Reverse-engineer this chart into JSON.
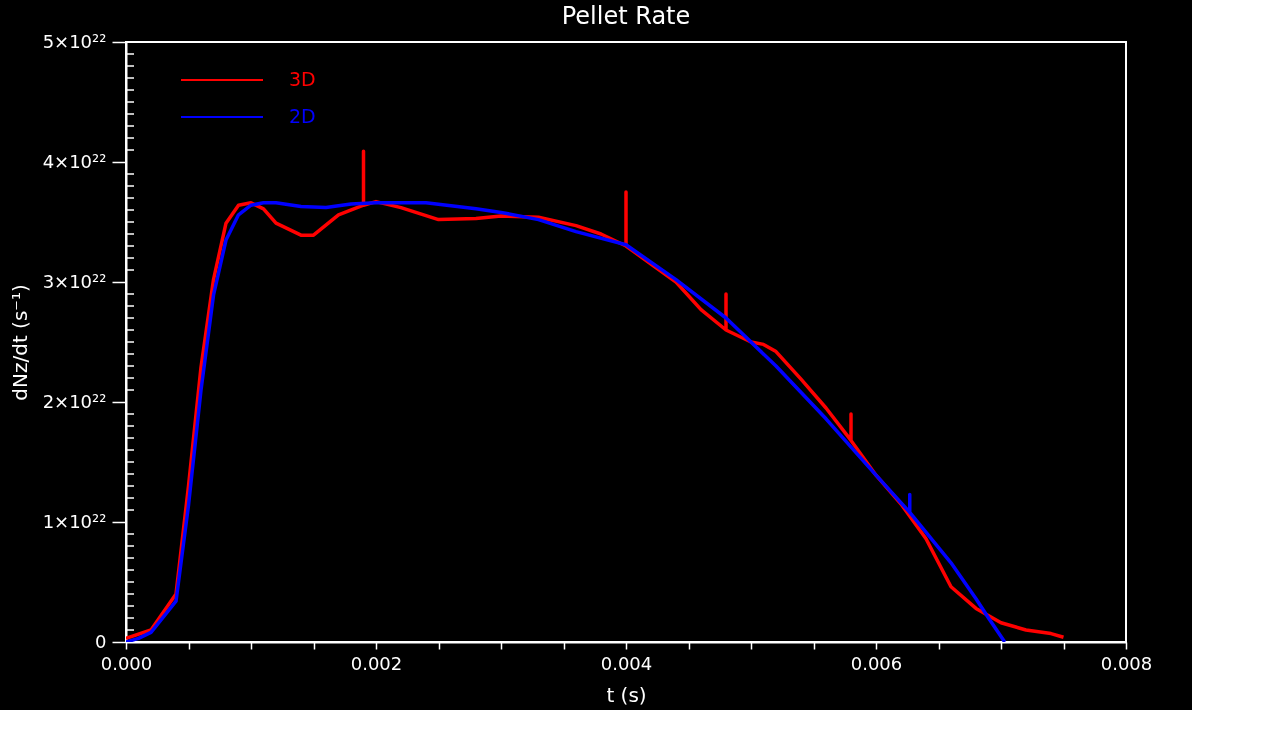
{
  "chart_data": {
    "type": "line",
    "title": "Pellet Rate",
    "xlabel": "t (s)",
    "ylabel": "dNz/dt (s⁻¹)",
    "xlim": [
      0,
      0.008
    ],
    "ylim": [
      0,
      5e+22
    ],
    "xticks": [
      {
        "value": 0,
        "label": "0.000"
      },
      {
        "value": 0.0005,
        "label": null
      },
      {
        "value": 0.001,
        "label": null
      },
      {
        "value": 0.0015,
        "label": null
      },
      {
        "value": 0.002,
        "label": "0.002"
      },
      {
        "value": 0.0025,
        "label": null
      },
      {
        "value": 0.003,
        "label": null
      },
      {
        "value": 0.0035,
        "label": null
      },
      {
        "value": 0.004,
        "label": "0.004"
      },
      {
        "value": 0.0045,
        "label": null
      },
      {
        "value": 0.005,
        "label": null
      },
      {
        "value": 0.0055,
        "label": null
      },
      {
        "value": 0.006,
        "label": "0.006"
      },
      {
        "value": 0.0065,
        "label": null
      },
      {
        "value": 0.007,
        "label": null
      },
      {
        "value": 0.0075,
        "label": null
      },
      {
        "value": 0.008,
        "label": "0.008"
      }
    ],
    "yticks": [
      0,
      {
        "value": 1e+21,
        "label": null
      },
      {
        "value": 2e+21,
        "label": null
      },
      {
        "value": 3e+21,
        "label": null
      },
      {
        "value": 4e+21,
        "label": null
      },
      {
        "value": 5e+21,
        "label": null
      },
      {
        "value": 6e+21,
        "label": null
      },
      {
        "value": 7e+21,
        "label": null
      },
      {
        "value": 8e+21,
        "label": null
      },
      {
        "value": 9e+21,
        "label": null
      },
      {
        "value": 1e+22,
        "label": "1×10²²"
      },
      {
        "value": 1.1e+22,
        "label": null
      },
      {
        "value": 1.2e+22,
        "label": null
      },
      {
        "value": 1.3e+22,
        "label": null
      },
      {
        "value": 1.4e+22,
        "label": null
      },
      {
        "value": 1.5e+22,
        "label": null
      },
      {
        "value": 1.6e+22,
        "label": null
      },
      {
        "value": 1.7e+22,
        "label": null
      },
      {
        "value": 1.8e+22,
        "label": null
      },
      {
        "value": 1.9e+22,
        "label": null
      },
      {
        "value": 2e+22,
        "label": "2×10²²"
      },
      {
        "value": 2.1e+22,
        "label": null
      },
      {
        "value": 2.2e+22,
        "label": null
      },
      {
        "value": 2.3e+22,
        "label": null
      },
      {
        "value": 2.4e+22,
        "label": null
      },
      {
        "value": 2.5e+22,
        "label": null
      },
      {
        "value": 2.6e+22,
        "label": null
      },
      {
        "value": 2.7e+22,
        "label": null
      },
      {
        "value": 2.8e+22,
        "label": null
      },
      {
        "value": 2.9e+22,
        "label": null
      },
      {
        "value": 3e+22,
        "label": "3×10²²"
      },
      {
        "value": 3.1e+22,
        "label": null
      },
      {
        "value": 3.2e+22,
        "label": null
      },
      {
        "value": 3.3e+22,
        "label": null
      },
      {
        "value": 3.4e+22,
        "label": null
      },
      {
        "value": 3.5e+22,
        "label": null
      },
      {
        "value": 3.6e+22,
        "label": null
      },
      {
        "value": 3.7e+22,
        "label": null
      },
      {
        "value": 3.8e+22,
        "label": null
      },
      {
        "value": 3.9e+22,
        "label": null
      },
      {
        "value": 4e+22,
        "label": "4×10²²"
      },
      {
        "value": 4.1e+22,
        "label": null
      },
      {
        "value": 4.2e+22,
        "label": null
      },
      {
        "value": 4.3e+22,
        "label": null
      },
      {
        "value": 4.4e+22,
        "label": null
      },
      {
        "value": 4.5e+22,
        "label": null
      },
      {
        "value": 4.6e+22,
        "label": null
      },
      {
        "value": 4.7e+22,
        "label": null
      },
      {
        "value": 4.8e+22,
        "label": null
      },
      {
        "value": 4.9e+22,
        "label": null
      },
      {
        "value": 5e+22,
        "label": "5×10²²"
      }
    ],
    "grid": false,
    "legend": "top left",
    "marker": "none",
    "line_style": "solid",
    "series": [
      {
        "name": "3D",
        "color": "#ff0000",
        "x": [
          0,
          0.0002,
          0.0004,
          0.0005,
          0.0006,
          0.0007,
          0.0008,
          0.0009,
          0.001,
          0.0011,
          0.0012,
          0.0014,
          0.0015,
          0.0017,
          0.0019,
          0.0019,
          0.0019,
          0.002,
          0.0022,
          0.0025,
          0.0028,
          0.003,
          0.0033,
          0.0036,
          0.0038,
          0.004,
          0.004,
          0.004,
          0.0042,
          0.0044,
          0.0046,
          0.0048,
          0.0048,
          0.0048,
          0.005,
          0.0051,
          0.0052,
          0.0054,
          0.0056,
          0.0058,
          0.0058,
          0.0058,
          0.006,
          0.0062,
          0.0064,
          0.0066,
          0.0068,
          0.007,
          0.0072,
          0.0074,
          0.0075
        ],
        "values": [
          3e+20,
          1e+21,
          4e+21,
          1.3e+22,
          2.29e+22,
          3.02e+22,
          3.49e+22,
          3.64e+22,
          3.66e+22,
          3.61e+22,
          3.49e+22,
          3.39e+22,
          3.39e+22,
          3.56e+22,
          3.64e+22,
          4.09e+22,
          3.64e+22,
          3.67e+22,
          3.62e+22,
          3.52e+22,
          3.53e+22,
          3.55e+22,
          3.54e+22,
          3.47e+22,
          3.4e+22,
          3.3e+22,
          3.75e+22,
          3.3e+22,
          3.15e+22,
          3e+22,
          2.77e+22,
          2.6e+22,
          2.9e+22,
          2.6e+22,
          2.5e+22,
          2.48e+22,
          2.42e+22,
          2.19e+22,
          1.95e+22,
          1.68e+22,
          1.9e+22,
          1.68e+22,
          1.39e+22,
          1.15e+22,
          8.6e+21,
          4.6e+21,
          2.8e+21,
          1.6e+21,
          1e+21,
          7e+20,
          4e+20
        ]
      },
      {
        "name": "2D",
        "color": "#0000ff",
        "x": [
          0,
          0.0001,
          0.0002,
          0.0004,
          0.0005,
          0.0006,
          0.0007,
          0.0008,
          0.0009,
          0.001,
          0.0011,
          0.0012,
          0.0014,
          0.0016,
          0.0018,
          0.002,
          0.0024,
          0.0028,
          0.003,
          0.0033,
          0.0036,
          0.004,
          0.0044,
          0.0048,
          0.0052,
          0.0056,
          0.006,
          0.00627,
          0.00627,
          0.00627,
          0.0066,
          0.0068,
          0.0069,
          0.00703
        ],
        "values": [
          0,
          3e+20,
          8e+20,
          3.4e+21,
          1.14e+22,
          2.1e+22,
          2.89e+22,
          3.35e+22,
          3.56e+22,
          3.64e+22,
          3.66e+22,
          3.66e+22,
          3.63e+22,
          3.62e+22,
          3.65e+22,
          3.66e+22,
          3.66e+22,
          3.61e+22,
          3.58e+22,
          3.52e+22,
          3.42e+22,
          3.31e+22,
          3.02e+22,
          2.7e+22,
          2.3e+22,
          1.86e+22,
          1.39e+22,
          1.08e+22,
          1.23e+22,
          1.08e+22,
          6.6e+21,
          3.6e+21,
          2e+21,
          0
        ]
      }
    ]
  }
}
